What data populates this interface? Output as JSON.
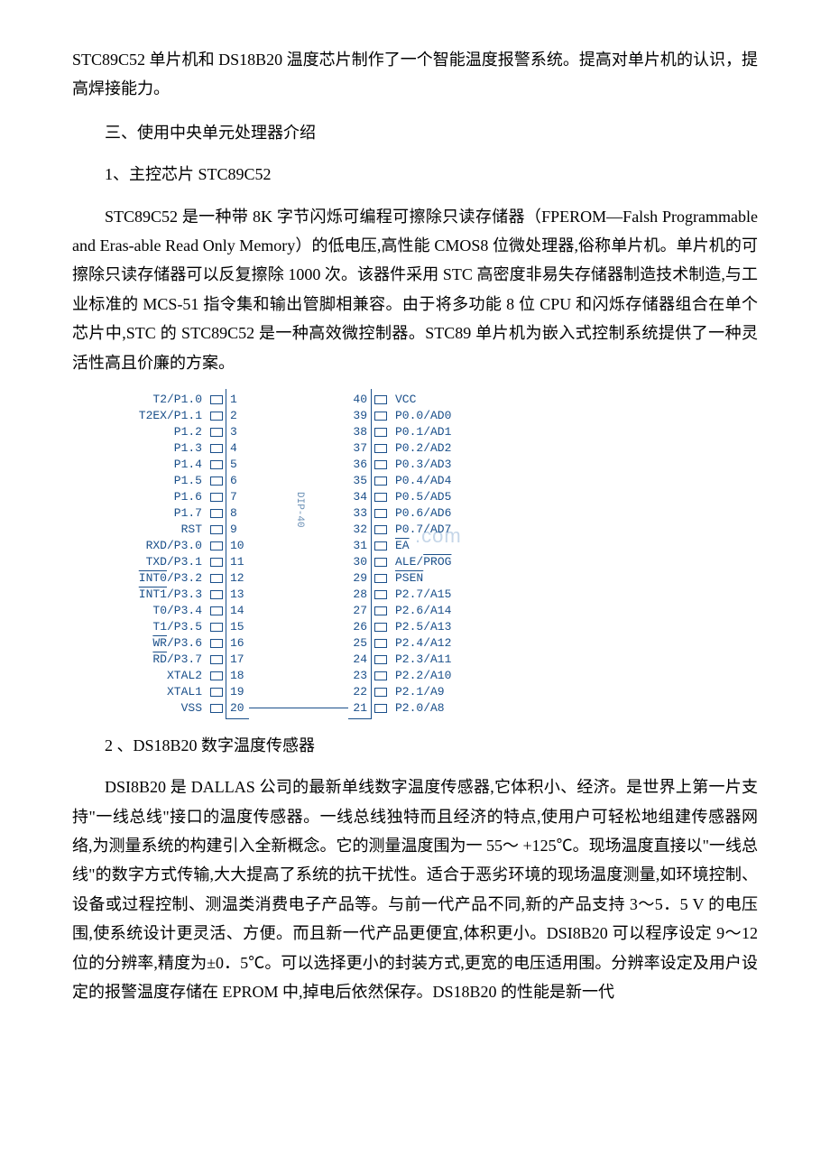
{
  "intro": {
    "line1": "STC89C52 单片机和 DS18B20 温度芯片制作了一个智能温度报警系统。提高对单片机的认识，提高焊接能力。"
  },
  "section3": {
    "title": "三、使用中央单元处理器介绍",
    "sub1_title": "1、主控芯片 STC89C52",
    "sub1_body": "STC89C52 是一种带 8K 字节闪烁可编程可擦除只读存储器（FPEROM—Falsh Programmable and Eras-able Read Only Memory）的低电压,高性能 CMOS8 位微处理器,俗称单片机。单片机的可擦除只读存储器可以反复擦除 1000 次。该器件采用 STC 高密度非易失存储器制造技术制造,与工业标准的 MCS-51 指令集和输出管脚相兼容。由于将多功能 8 位 CPU 和闪烁存储器组合在单个芯片中,STC 的 STC89C52 是一种高效微控制器。STC89 单片机为嵌入式控制系统提供了一种灵活性高且价廉的方案。",
    "sub2_title": "2 、DS18B20 数字温度传感器",
    "sub2_body": "DSI8B20 是 DALLAS 公司的最新单线数字温度传感器,它体积小、经济。是世界上第一片支持\"一线总线\"接口的温度传感器。一线总线独特而且经济的特点,使用户可轻松地组建传感器网络,为测量系统的构建引入全新概念。它的测量温度围为一 55～ +125℃。现场温度直接以\"一线总线\"的数字方式传输,大大提高了系统的抗干扰性。适合于恶劣环境的现场温度测量,如环境控制、设备或过程控制、测温类消费电子产品等。与前一代产品不同,新的产品支持 3～5．5 V 的电压围,使系统设计更灵活、方便。而且新一代产品更便宜,体积更小。DSI8B20 可以程序设定 9～12 位的分辨率,精度为±0．5℃。可以选择更小的封装方式,更宽的电压适用围。分辨率设定及用户设定的报警温度存储在 EPROM 中,掉电后依然保存。DS18B20 的性能是新一代"
  },
  "chip": {
    "center_label": "DIP-40",
    "watermark_text": ".com",
    "pins": [
      {
        "l": "T2/P1.0",
        "ln": "1",
        "rn": "40",
        "r": "VCC"
      },
      {
        "l": "T2EX/P1.1",
        "ln": "2",
        "rn": "39",
        "r": "P0.0/AD0"
      },
      {
        "l": "P1.2",
        "ln": "3",
        "rn": "38",
        "r": "P0.1/AD1"
      },
      {
        "l": "P1.3",
        "ln": "4",
        "rn": "37",
        "r": "P0.2/AD2"
      },
      {
        "l": "P1.4",
        "ln": "5",
        "rn": "36",
        "r": "P0.3/AD3"
      },
      {
        "l": "P1.5",
        "ln": "6",
        "rn": "35",
        "r": "P0.4/AD4"
      },
      {
        "l": "P1.6",
        "ln": "7",
        "rn": "34",
        "r": "P0.5/AD5"
      },
      {
        "l": "P1.7",
        "ln": "8",
        "rn": "33",
        "r": "P0.6/AD6"
      },
      {
        "l": "RST",
        "ln": "9",
        "rn": "32",
        "r": "P0.7/AD7"
      },
      {
        "l": "RXD/P3.0",
        "ln": "10",
        "rn": "31",
        "r": "EA",
        "r_over": true
      },
      {
        "l": "TXD/P3.1",
        "ln": "11",
        "rn": "30",
        "r": "ALE/PROG",
        "r_over_part": "PROG"
      },
      {
        "l": "INT0/P3.2",
        "ln": "12",
        "rn": "29",
        "r": "PSEN",
        "l_over_part": "INT0",
        "r_over": true
      },
      {
        "l": "INT1/P3.3",
        "ln": "13",
        "rn": "28",
        "r": "P2.7/A15",
        "l_over_part": "INT1"
      },
      {
        "l": "T0/P3.4",
        "ln": "14",
        "rn": "27",
        "r": "P2.6/A14"
      },
      {
        "l": "T1/P3.5",
        "ln": "15",
        "rn": "26",
        "r": "P2.5/A13"
      },
      {
        "l": "WR/P3.6",
        "ln": "16",
        "rn": "25",
        "r": "P2.4/A12",
        "l_over_part": "WR"
      },
      {
        "l": "RD/P3.7",
        "ln": "17",
        "rn": "24",
        "r": "P2.3/A11",
        "l_over_part": "RD"
      },
      {
        "l": "XTAL2",
        "ln": "18",
        "rn": "23",
        "r": "P2.2/A10"
      },
      {
        "l": "XTAL1",
        "ln": "19",
        "rn": "22",
        "r": "P2.1/A9"
      },
      {
        "l": "VSS",
        "ln": "20",
        "rn": "21",
        "r": "P2.0/A8"
      }
    ]
  }
}
